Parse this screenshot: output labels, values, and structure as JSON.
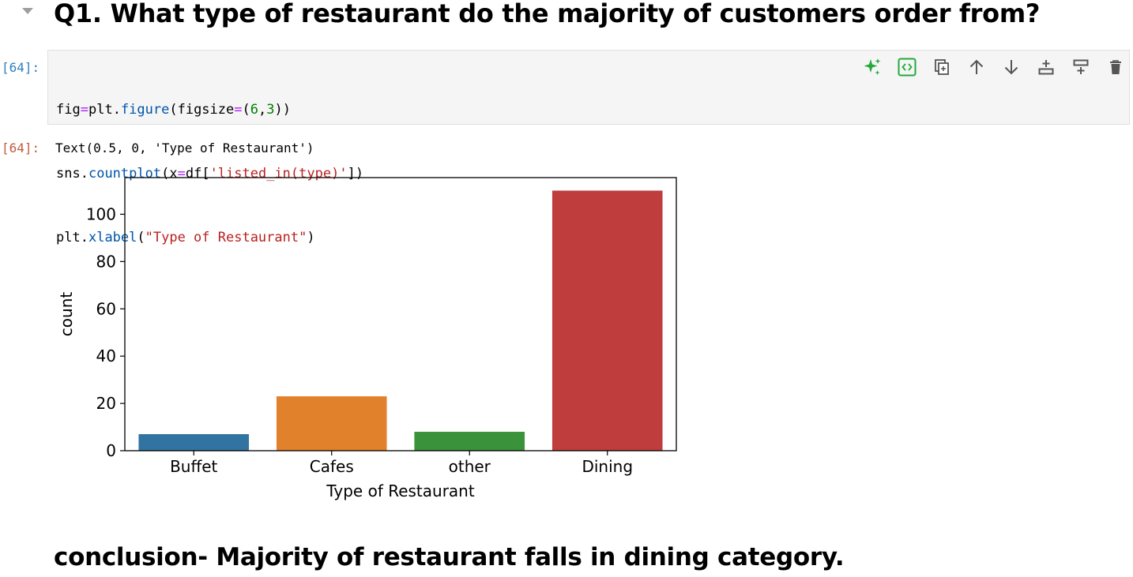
{
  "heading": {
    "text": "Q1. What type of restaurant do the majority of customers order from?"
  },
  "input_cell": {
    "prompt": "[64]:",
    "code": {
      "line1": {
        "a": "fig",
        "op1": "=",
        "b": "plt",
        "c": ".",
        "d": "figure",
        "e": "(figsize",
        "op2": "=",
        "f": "(",
        "n1": "6",
        "g": ",",
        "n2": "3",
        "h": "))"
      },
      "line2": {
        "a": "sns",
        "b": ".",
        "c": "countplot",
        "d": "(x",
        "op": "=",
        "e": "df",
        "f": "[",
        "s": "'listed_in(type)'",
        "g": "]",
        "h": ")"
      },
      "line3": {
        "a": "plt",
        "b": ".",
        "c": "xlabel",
        "d": "(",
        "s": "\"Type of Restaurant\"",
        "e": ")"
      }
    }
  },
  "toolbar": {
    "icons": [
      "sparkle-ai-icon",
      "code-render-icon",
      "duplicate-icon",
      "move-up-icon",
      "move-down-icon",
      "insert-above-icon",
      "insert-below-icon",
      "delete-icon"
    ],
    "accent": "#22a93a"
  },
  "output_cell": {
    "prompt": "[64]:",
    "text": "Text(0.5, 0, 'Type of Restaurant')"
  },
  "chart_data": {
    "type": "bar",
    "categories": [
      "Buffet",
      "Cafes",
      "other",
      "Dining"
    ],
    "values": [
      7,
      23,
      8,
      110
    ],
    "colors": [
      "#3274a1",
      "#e1812c",
      "#3a923a",
      "#c03d3e"
    ],
    "xlabel": "Type of Restaurant",
    "ylabel": "count",
    "ylim": [
      0,
      115.5
    ],
    "yticks": [
      0,
      20,
      40,
      60,
      80,
      100
    ],
    "grid": false
  },
  "conclusion": {
    "text": "conclusion- Majority of restaurant falls in dining category."
  }
}
